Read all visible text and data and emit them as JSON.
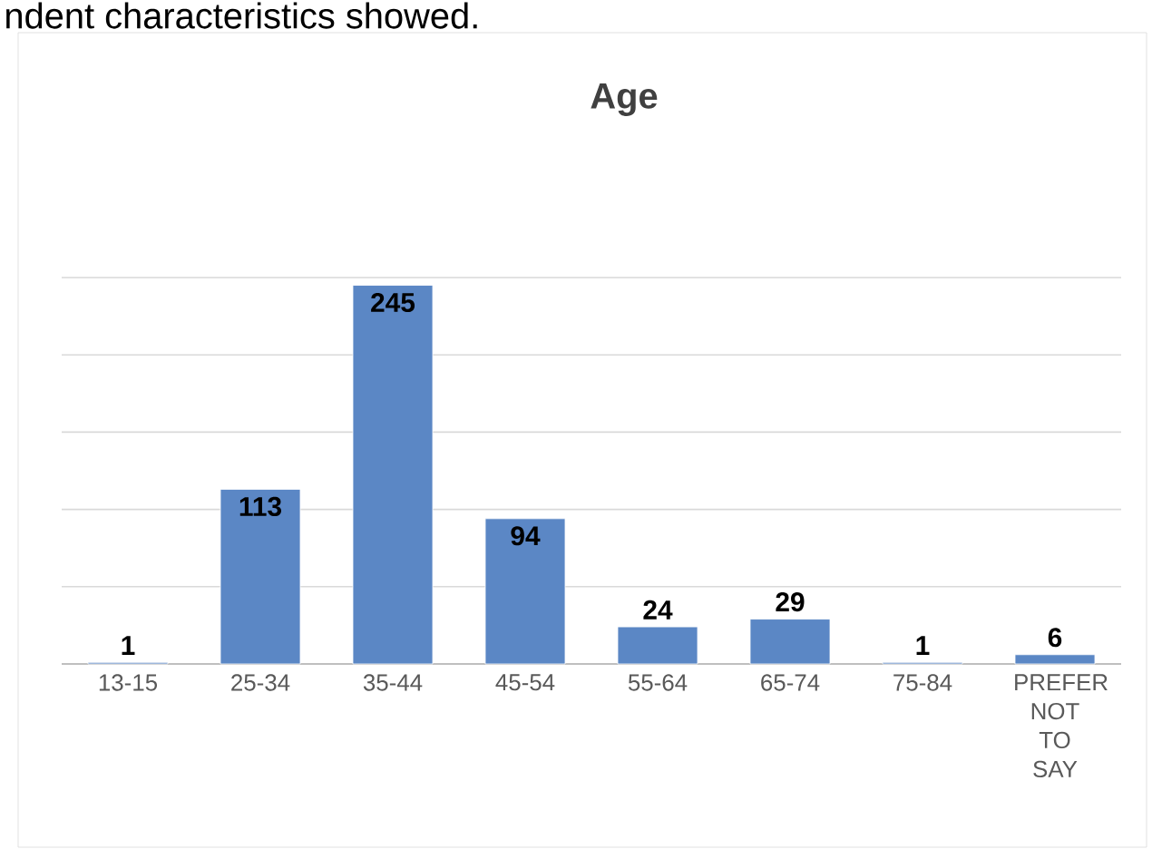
{
  "chart_data": {
    "type": "bar",
    "title": "Age",
    "annotations": [
      "ndent characteristics showed."
    ],
    "categories": [
      "13-15",
      "25-34",
      "35-44",
      "45-54",
      "55-64",
      "65-74",
      "75-84",
      "PREFER NOT TO SAY"
    ],
    "values": [
      1,
      113,
      245,
      94,
      24,
      29,
      1,
      6
    ],
    "color": "#5b87c5",
    "ylim": [
      0,
      250
    ],
    "yticks": [
      {
        "value": 0,
        "label": null
      },
      {
        "value": 50,
        "label": null
      },
      {
        "value": 100,
        "label": null
      },
      {
        "value": 150,
        "label": null
      },
      {
        "value": 200,
        "label": null
      },
      {
        "value": 250,
        "label": null
      }
    ],
    "tick_labels": "x",
    "grid": "y",
    "data_labels": true
  }
}
